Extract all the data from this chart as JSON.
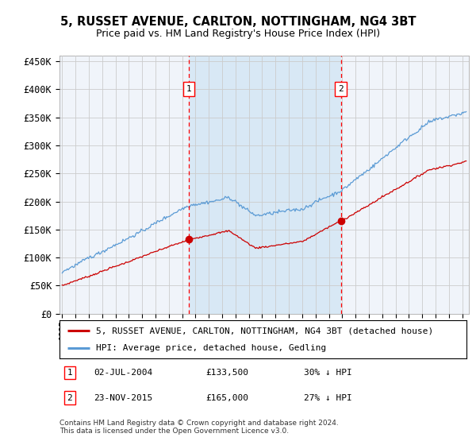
{
  "title1": "5, RUSSET AVENUE, CARLTON, NOTTINGHAM, NG4 3BT",
  "title2": "Price paid vs. HM Land Registry's House Price Index (HPI)",
  "ylabel_ticks": [
    "£0",
    "£50K",
    "£100K",
    "£150K",
    "£200K",
    "£250K",
    "£300K",
    "£350K",
    "£400K",
    "£450K"
  ],
  "ytick_values": [
    0,
    50000,
    100000,
    150000,
    200000,
    250000,
    300000,
    350000,
    400000,
    450000
  ],
  "ylim": [
    0,
    460000
  ],
  "xlim_start": 1994.8,
  "xlim_end": 2025.5,
  "plot_bg_color": "#f0f4fa",
  "shade_color": "#d8e8f5",
  "grid_color": "#cccccc",
  "hpi_color": "#5b9bd5",
  "price_color": "#cc0000",
  "marker1_x": 2004.5,
  "marker1_y": 133500,
  "marker2_x": 2015.9,
  "marker2_y": 165000,
  "legend_line1": "5, RUSSET AVENUE, CARLTON, NOTTINGHAM, NG4 3BT (detached house)",
  "legend_line2": "HPI: Average price, detached house, Gedling",
  "annotation1_date": "02-JUL-2004",
  "annotation1_price": "£133,500",
  "annotation1_hpi": "30% ↓ HPI",
  "annotation2_date": "23-NOV-2015",
  "annotation2_price": "£165,000",
  "annotation2_hpi": "27% ↓ HPI",
  "footer": "Contains HM Land Registry data © Crown copyright and database right 2024.\nThis data is licensed under the Open Government Licence v3.0."
}
